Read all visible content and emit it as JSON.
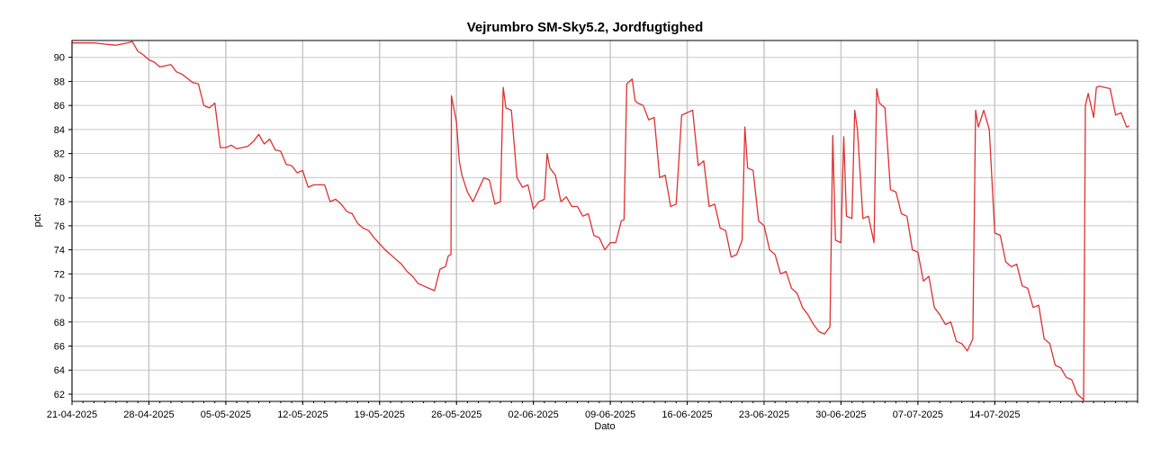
{
  "chart_data": {
    "type": "line",
    "title": "Vejrumbro SM-Sky5.2, Jordfugtighed",
    "xlabel": "Dato",
    "ylabel": "pct",
    "x_tick_labels": [
      "21-04-2025",
      "28-04-2025",
      "05-05-2025",
      "12-05-2025",
      "19-05-2025",
      "26-05-2025",
      "02-06-2025",
      "09-06-2025",
      "16-06-2025",
      "23-06-2025",
      "30-06-2025",
      "07-07-2025",
      "14-07-2025"
    ],
    "y_ticks": [
      62,
      64,
      66,
      68,
      70,
      72,
      74,
      76,
      78,
      80,
      82,
      84,
      86,
      88,
      90
    ],
    "xlim": [
      "2025-04-21",
      "2025-07-27"
    ],
    "ylim": [
      61.4,
      91.4
    ],
    "grid": true,
    "legend": "none",
    "series": [
      {
        "color": "#e03030",
        "points": [
          [
            "2025-04-21",
            91.2
          ],
          [
            "2025-04-22",
            91.2
          ],
          [
            "2025-04-23",
            91.2
          ],
          [
            "2025-04-24",
            91.1
          ],
          [
            "2025-04-25",
            91.0
          ],
          [
            "2025-04-26",
            91.2
          ],
          [
            "2025-04-26T12",
            91.3
          ],
          [
            "2025-04-27",
            90.5
          ],
          [
            "2025-04-27T12",
            90.2
          ],
          [
            "2025-04-28",
            89.8
          ],
          [
            "2025-04-28T12",
            89.6
          ],
          [
            "2025-04-29",
            89.2
          ],
          [
            "2025-04-30",
            89.4
          ],
          [
            "2025-04-30T12",
            88.8
          ],
          [
            "2025-05-01",
            88.6
          ],
          [
            "2025-05-02",
            87.9
          ],
          [
            "2025-05-02T12",
            87.8
          ],
          [
            "2025-05-03",
            86.0
          ],
          [
            "2025-05-03T12",
            85.8
          ],
          [
            "2025-05-04",
            86.2
          ],
          [
            "2025-05-04T12",
            82.5
          ],
          [
            "2025-05-05",
            82.5
          ],
          [
            "2025-05-05T12",
            82.7
          ],
          [
            "2025-05-06",
            82.4
          ],
          [
            "2025-05-07",
            82.6
          ],
          [
            "2025-05-07T12",
            83.0
          ],
          [
            "2025-05-08",
            83.6
          ],
          [
            "2025-05-08T12",
            82.8
          ],
          [
            "2025-05-09",
            83.2
          ],
          [
            "2025-05-09T12",
            82.3
          ],
          [
            "2025-05-10",
            82.2
          ],
          [
            "2025-05-10T12",
            81.1
          ],
          [
            "2025-05-11",
            81.0
          ],
          [
            "2025-05-11T12",
            80.4
          ],
          [
            "2025-05-12",
            80.6
          ],
          [
            "2025-05-12T12",
            79.2
          ],
          [
            "2025-05-13",
            79.4
          ],
          [
            "2025-05-14",
            79.4
          ],
          [
            "2025-05-14T12",
            78.0
          ],
          [
            "2025-05-15",
            78.2
          ],
          [
            "2025-05-15T12",
            77.8
          ],
          [
            "2025-05-16",
            77.2
          ],
          [
            "2025-05-16T12",
            77.0
          ],
          [
            "2025-05-17",
            76.2
          ],
          [
            "2025-05-17T12",
            75.8
          ],
          [
            "2025-05-18",
            75.6
          ],
          [
            "2025-05-18T12",
            75.0
          ],
          [
            "2025-05-19",
            74.5
          ],
          [
            "2025-05-19T12",
            74.0
          ],
          [
            "2025-05-20",
            73.6
          ],
          [
            "2025-05-20T12",
            73.2
          ],
          [
            "2025-05-21",
            72.8
          ],
          [
            "2025-05-21T12",
            72.2
          ],
          [
            "2025-05-22",
            71.8
          ],
          [
            "2025-05-22T12",
            71.2
          ],
          [
            "2025-05-23",
            71.0
          ],
          [
            "2025-05-23T12",
            70.8
          ],
          [
            "2025-05-24",
            70.6
          ],
          [
            "2025-05-24T12",
            72.4
          ],
          [
            "2025-05-25",
            72.6
          ],
          [
            "2025-05-25T06",
            73.5
          ],
          [
            "2025-05-25T12",
            73.6
          ],
          [
            "2025-05-25T13",
            86.8
          ],
          [
            "2025-05-26",
            84.6
          ],
          [
            "2025-05-26T06",
            81.4
          ],
          [
            "2025-05-26T12",
            80.2
          ],
          [
            "2025-05-27",
            78.8
          ],
          [
            "2025-05-27T12",
            78.0
          ],
          [
            "2025-05-28",
            79.0
          ],
          [
            "2025-05-28T12",
            80.0
          ],
          [
            "2025-05-29",
            79.8
          ],
          [
            "2025-05-29T12",
            77.8
          ],
          [
            "2025-05-30",
            78.0
          ],
          [
            "2025-05-30T06",
            87.5
          ],
          [
            "2025-05-30T12",
            85.8
          ],
          [
            "2025-05-31",
            85.6
          ],
          [
            "2025-05-31T12",
            80.0
          ],
          [
            "2025-06-01",
            79.2
          ],
          [
            "2025-06-01T12",
            79.4
          ],
          [
            "2025-06-02",
            77.4
          ],
          [
            "2025-06-02T12",
            78.0
          ],
          [
            "2025-06-03",
            78.2
          ],
          [
            "2025-06-03T06",
            82.0
          ],
          [
            "2025-06-03T12",
            80.8
          ],
          [
            "2025-06-04",
            80.2
          ],
          [
            "2025-06-04T12",
            78.0
          ],
          [
            "2025-06-05",
            78.4
          ],
          [
            "2025-06-05T12",
            77.6
          ],
          [
            "2025-06-06",
            77.6
          ],
          [
            "2025-06-06T12",
            76.8
          ],
          [
            "2025-06-07",
            77.0
          ],
          [
            "2025-06-07T12",
            75.2
          ],
          [
            "2025-06-08",
            75.0
          ],
          [
            "2025-06-08T12",
            74.0
          ],
          [
            "2025-06-09",
            74.6
          ],
          [
            "2025-06-09T12",
            74.6
          ],
          [
            "2025-06-10",
            76.4
          ],
          [
            "2025-06-10T06",
            76.5
          ],
          [
            "2025-06-10T12",
            87.8
          ],
          [
            "2025-06-11",
            88.2
          ],
          [
            "2025-06-11T06",
            86.4
          ],
          [
            "2025-06-11T12",
            86.2
          ],
          [
            "2025-06-12",
            86.0
          ],
          [
            "2025-06-12T12",
            84.8
          ],
          [
            "2025-06-13",
            85.0
          ],
          [
            "2025-06-13T12",
            80.0
          ],
          [
            "2025-06-14",
            80.2
          ],
          [
            "2025-06-14T12",
            77.6
          ],
          [
            "2025-06-15",
            77.8
          ],
          [
            "2025-06-15T12",
            85.2
          ],
          [
            "2025-06-16",
            85.4
          ],
          [
            "2025-06-16T12",
            85.6
          ],
          [
            "2025-06-17",
            81.0
          ],
          [
            "2025-06-17T12",
            81.4
          ],
          [
            "2025-06-18",
            77.6
          ],
          [
            "2025-06-18T12",
            77.8
          ],
          [
            "2025-06-19",
            75.8
          ],
          [
            "2025-06-19T12",
            75.6
          ],
          [
            "2025-06-20",
            73.4
          ],
          [
            "2025-06-20T12",
            73.6
          ],
          [
            "2025-06-21",
            74.8
          ],
          [
            "2025-06-21T06",
            84.2
          ],
          [
            "2025-06-21T12",
            80.8
          ],
          [
            "2025-06-22",
            80.6
          ],
          [
            "2025-06-22T12",
            76.4
          ],
          [
            "2025-06-23",
            76.0
          ],
          [
            "2025-06-23T12",
            74.0
          ],
          [
            "2025-06-24",
            73.6
          ],
          [
            "2025-06-24T12",
            72.0
          ],
          [
            "2025-06-25",
            72.2
          ],
          [
            "2025-06-25T12",
            70.8
          ],
          [
            "2025-06-26",
            70.4
          ],
          [
            "2025-06-26T12",
            69.2
          ],
          [
            "2025-06-27",
            68.6
          ],
          [
            "2025-06-27T12",
            67.8
          ],
          [
            "2025-06-28",
            67.2
          ],
          [
            "2025-06-28T12",
            67.0
          ],
          [
            "2025-06-29",
            67.6
          ],
          [
            "2025-06-29T06",
            83.5
          ],
          [
            "2025-06-29T12",
            74.8
          ],
          [
            "2025-06-30",
            74.6
          ],
          [
            "2025-06-30T06",
            83.4
          ],
          [
            "2025-06-30T12",
            76.8
          ],
          [
            "2025-07-01",
            76.6
          ],
          [
            "2025-07-01T06",
            85.6
          ],
          [
            "2025-07-01T12",
            84.0
          ],
          [
            "2025-07-02",
            76.6
          ],
          [
            "2025-07-02T12",
            76.8
          ],
          [
            "2025-07-03",
            74.6
          ],
          [
            "2025-07-03T06",
            87.4
          ],
          [
            "2025-07-03T12",
            86.2
          ],
          [
            "2025-07-04",
            85.8
          ],
          [
            "2025-07-04T12",
            79.0
          ],
          [
            "2025-07-05",
            78.8
          ],
          [
            "2025-07-05T12",
            77.0
          ],
          [
            "2025-07-06",
            76.8
          ],
          [
            "2025-07-06T12",
            74.0
          ],
          [
            "2025-07-07",
            73.8
          ],
          [
            "2025-07-07T12",
            71.4
          ],
          [
            "2025-07-08",
            71.8
          ],
          [
            "2025-07-08T12",
            69.2
          ],
          [
            "2025-07-09",
            68.6
          ],
          [
            "2025-07-09T12",
            67.8
          ],
          [
            "2025-07-10",
            68.0
          ],
          [
            "2025-07-10T12",
            66.4
          ],
          [
            "2025-07-11",
            66.2
          ],
          [
            "2025-07-11T12",
            65.6
          ],
          [
            "2025-07-12",
            66.6
          ],
          [
            "2025-07-12T06",
            85.6
          ],
          [
            "2025-07-12T12",
            84.2
          ],
          [
            "2025-07-13",
            85.6
          ],
          [
            "2025-07-13T12",
            84.0
          ],
          [
            "2025-07-14",
            75.4
          ],
          [
            "2025-07-14T12",
            75.2
          ],
          [
            "2025-07-15",
            73.0
          ],
          [
            "2025-07-15T12",
            72.6
          ],
          [
            "2025-07-16",
            72.8
          ],
          [
            "2025-07-16T12",
            71.0
          ],
          [
            "2025-07-17",
            70.8
          ],
          [
            "2025-07-17T12",
            69.2
          ],
          [
            "2025-07-18",
            69.4
          ],
          [
            "2025-07-18T12",
            66.6
          ],
          [
            "2025-07-19",
            66.2
          ],
          [
            "2025-07-19T12",
            64.4
          ],
          [
            "2025-07-20",
            64.2
          ],
          [
            "2025-07-20T12",
            63.4
          ],
          [
            "2025-07-21",
            63.2
          ],
          [
            "2025-07-21T12",
            62.0
          ],
          [
            "2025-07-22",
            61.6
          ],
          [
            "2025-07-22T02",
            61.5
          ],
          [
            "2025-07-22T06",
            86.0
          ],
          [
            "2025-07-22T12",
            87.0
          ],
          [
            "2025-07-23",
            85.0
          ],
          [
            "2025-07-23T06",
            87.5
          ],
          [
            "2025-07-23T12",
            87.6
          ],
          [
            "2025-07-24",
            87.5
          ],
          [
            "2025-07-24T12",
            87.4
          ],
          [
            "2025-07-25",
            85.2
          ],
          [
            "2025-07-25T12",
            85.4
          ],
          [
            "2025-07-26",
            84.2
          ],
          [
            "2025-07-26T06",
            84.3
          ]
        ]
      }
    ]
  }
}
